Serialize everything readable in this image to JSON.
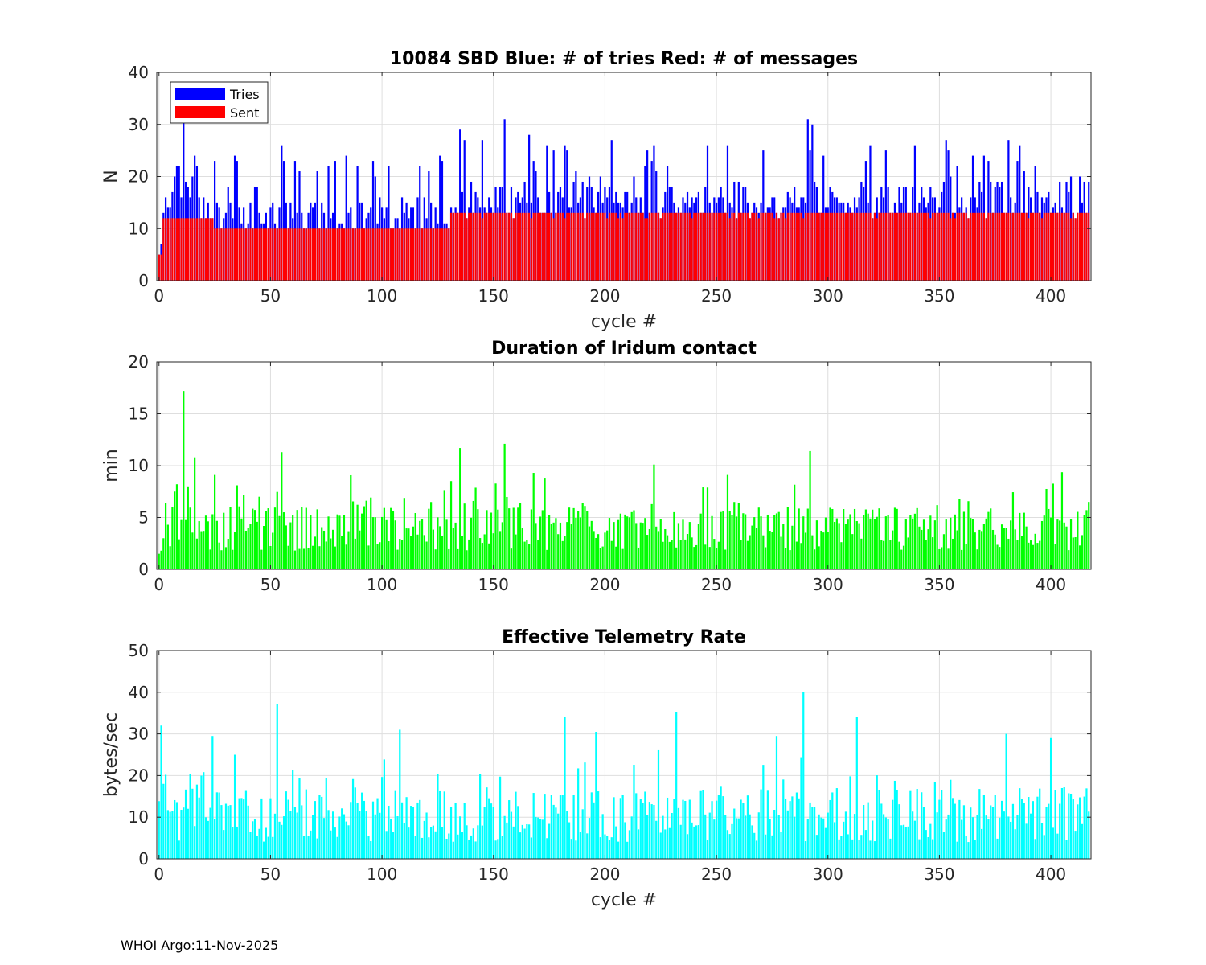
{
  "chart_data": [
    {
      "type": "bar",
      "title": "10084 SBD  Blue: # of tries   Red: # of messages",
      "xlabel": "cycle #",
      "ylabel": "N",
      "xlim": [
        -1,
        418
      ],
      "ylim": [
        0,
        40
      ],
      "xticks": [
        0,
        50,
        100,
        150,
        200,
        250,
        300,
        350,
        400
      ],
      "yticks": [
        0,
        10,
        20,
        30,
        40
      ],
      "grid": true,
      "legend": {
        "location": "top-left",
        "entries": [
          "Tries",
          "Sent"
        ]
      },
      "colors": {
        "Tries": "#0000ff",
        "Sent": "#ff0000"
      },
      "series_note": "418 cycles (0-417); two overlaid series: Tries (blue, behind) and Sent (red, in front)",
      "tries_sample_by_cycle": {
        "0": 5,
        "1": 7,
        "2": 13,
        "3": 16,
        "4": 14,
        "5": 14,
        "6": 17,
        "7": 20,
        "8": 22,
        "9": 22,
        "10": 16,
        "11": 31,
        "12": 19,
        "13": 18,
        "14": 16,
        "15": 20,
        "16": 24,
        "17": 22,
        "25": 23,
        "35": 23,
        "55": 26,
        "71": 21,
        "79": 23,
        "103": 22,
        "117": 22,
        "127": 23,
        "135": 29,
        "137": 27,
        "145": 27,
        "155": 31,
        "166": 28,
        "168": 23,
        "182": 26,
        "203": 27,
        "222": 26,
        "255": 26,
        "291": 31,
        "293": 30,
        "370": 24,
        "372": 23,
        "385": 23,
        "393": 22,
        "415": 19,
        "417": 19
      },
      "sent_levels": {
        "cycles_0_1": 5,
        "cycles_2_24": 12,
        "cycles_25_130": 10,
        "cycles_131_417": 13
      }
    },
    {
      "type": "bar",
      "title": "Duration of Iridum contact",
      "xlabel": "",
      "ylabel": "min",
      "xlim": [
        -1,
        418
      ],
      "ylim": [
        0,
        20
      ],
      "xticks": [
        0,
        50,
        100,
        150,
        200,
        250,
        300,
        350,
        400
      ],
      "yticks": [
        0,
        5,
        10,
        15,
        20
      ],
      "grid": true,
      "color": "#00ff00",
      "sample_by_cycle": {
        "0": 1.5,
        "1": 1.8,
        "2": 3.0,
        "3": 6.4,
        "7": 7.5,
        "8": 8.2,
        "11": 17.2,
        "13": 8.0,
        "16": 10.8,
        "25": 9.1,
        "35": 8.1,
        "55": 11.3,
        "135": 11.7,
        "155": 12.1,
        "168": 9.3,
        "222": 10.1,
        "255": 9.1,
        "292": 11.4,
        "400": 5.0,
        "417": 6.5
      }
    },
    {
      "type": "bar",
      "title": "Effective Telemetry Rate",
      "xlabel": "cycle #",
      "ylabel": "bytes/sec",
      "xlim": [
        -1,
        418
      ],
      "ylim": [
        0,
        50
      ],
      "xticks": [
        0,
        50,
        100,
        150,
        200,
        250,
        300,
        350,
        400
      ],
      "yticks": [
        0,
        10,
        20,
        30,
        40,
        50
      ],
      "grid": true,
      "color": "#00ffff",
      "sample_by_cycle": {
        "1": 32,
        "2": 18,
        "24": 29.5,
        "34": 25,
        "53": 37.2,
        "108": 31,
        "182": 34,
        "196": 30.5,
        "232": 35.3,
        "277": 29.5,
        "289": 40,
        "313": 34,
        "380": 30,
        "400": 29
      }
    }
  ],
  "footer": "WHOI Argo:11-Nov-2025"
}
